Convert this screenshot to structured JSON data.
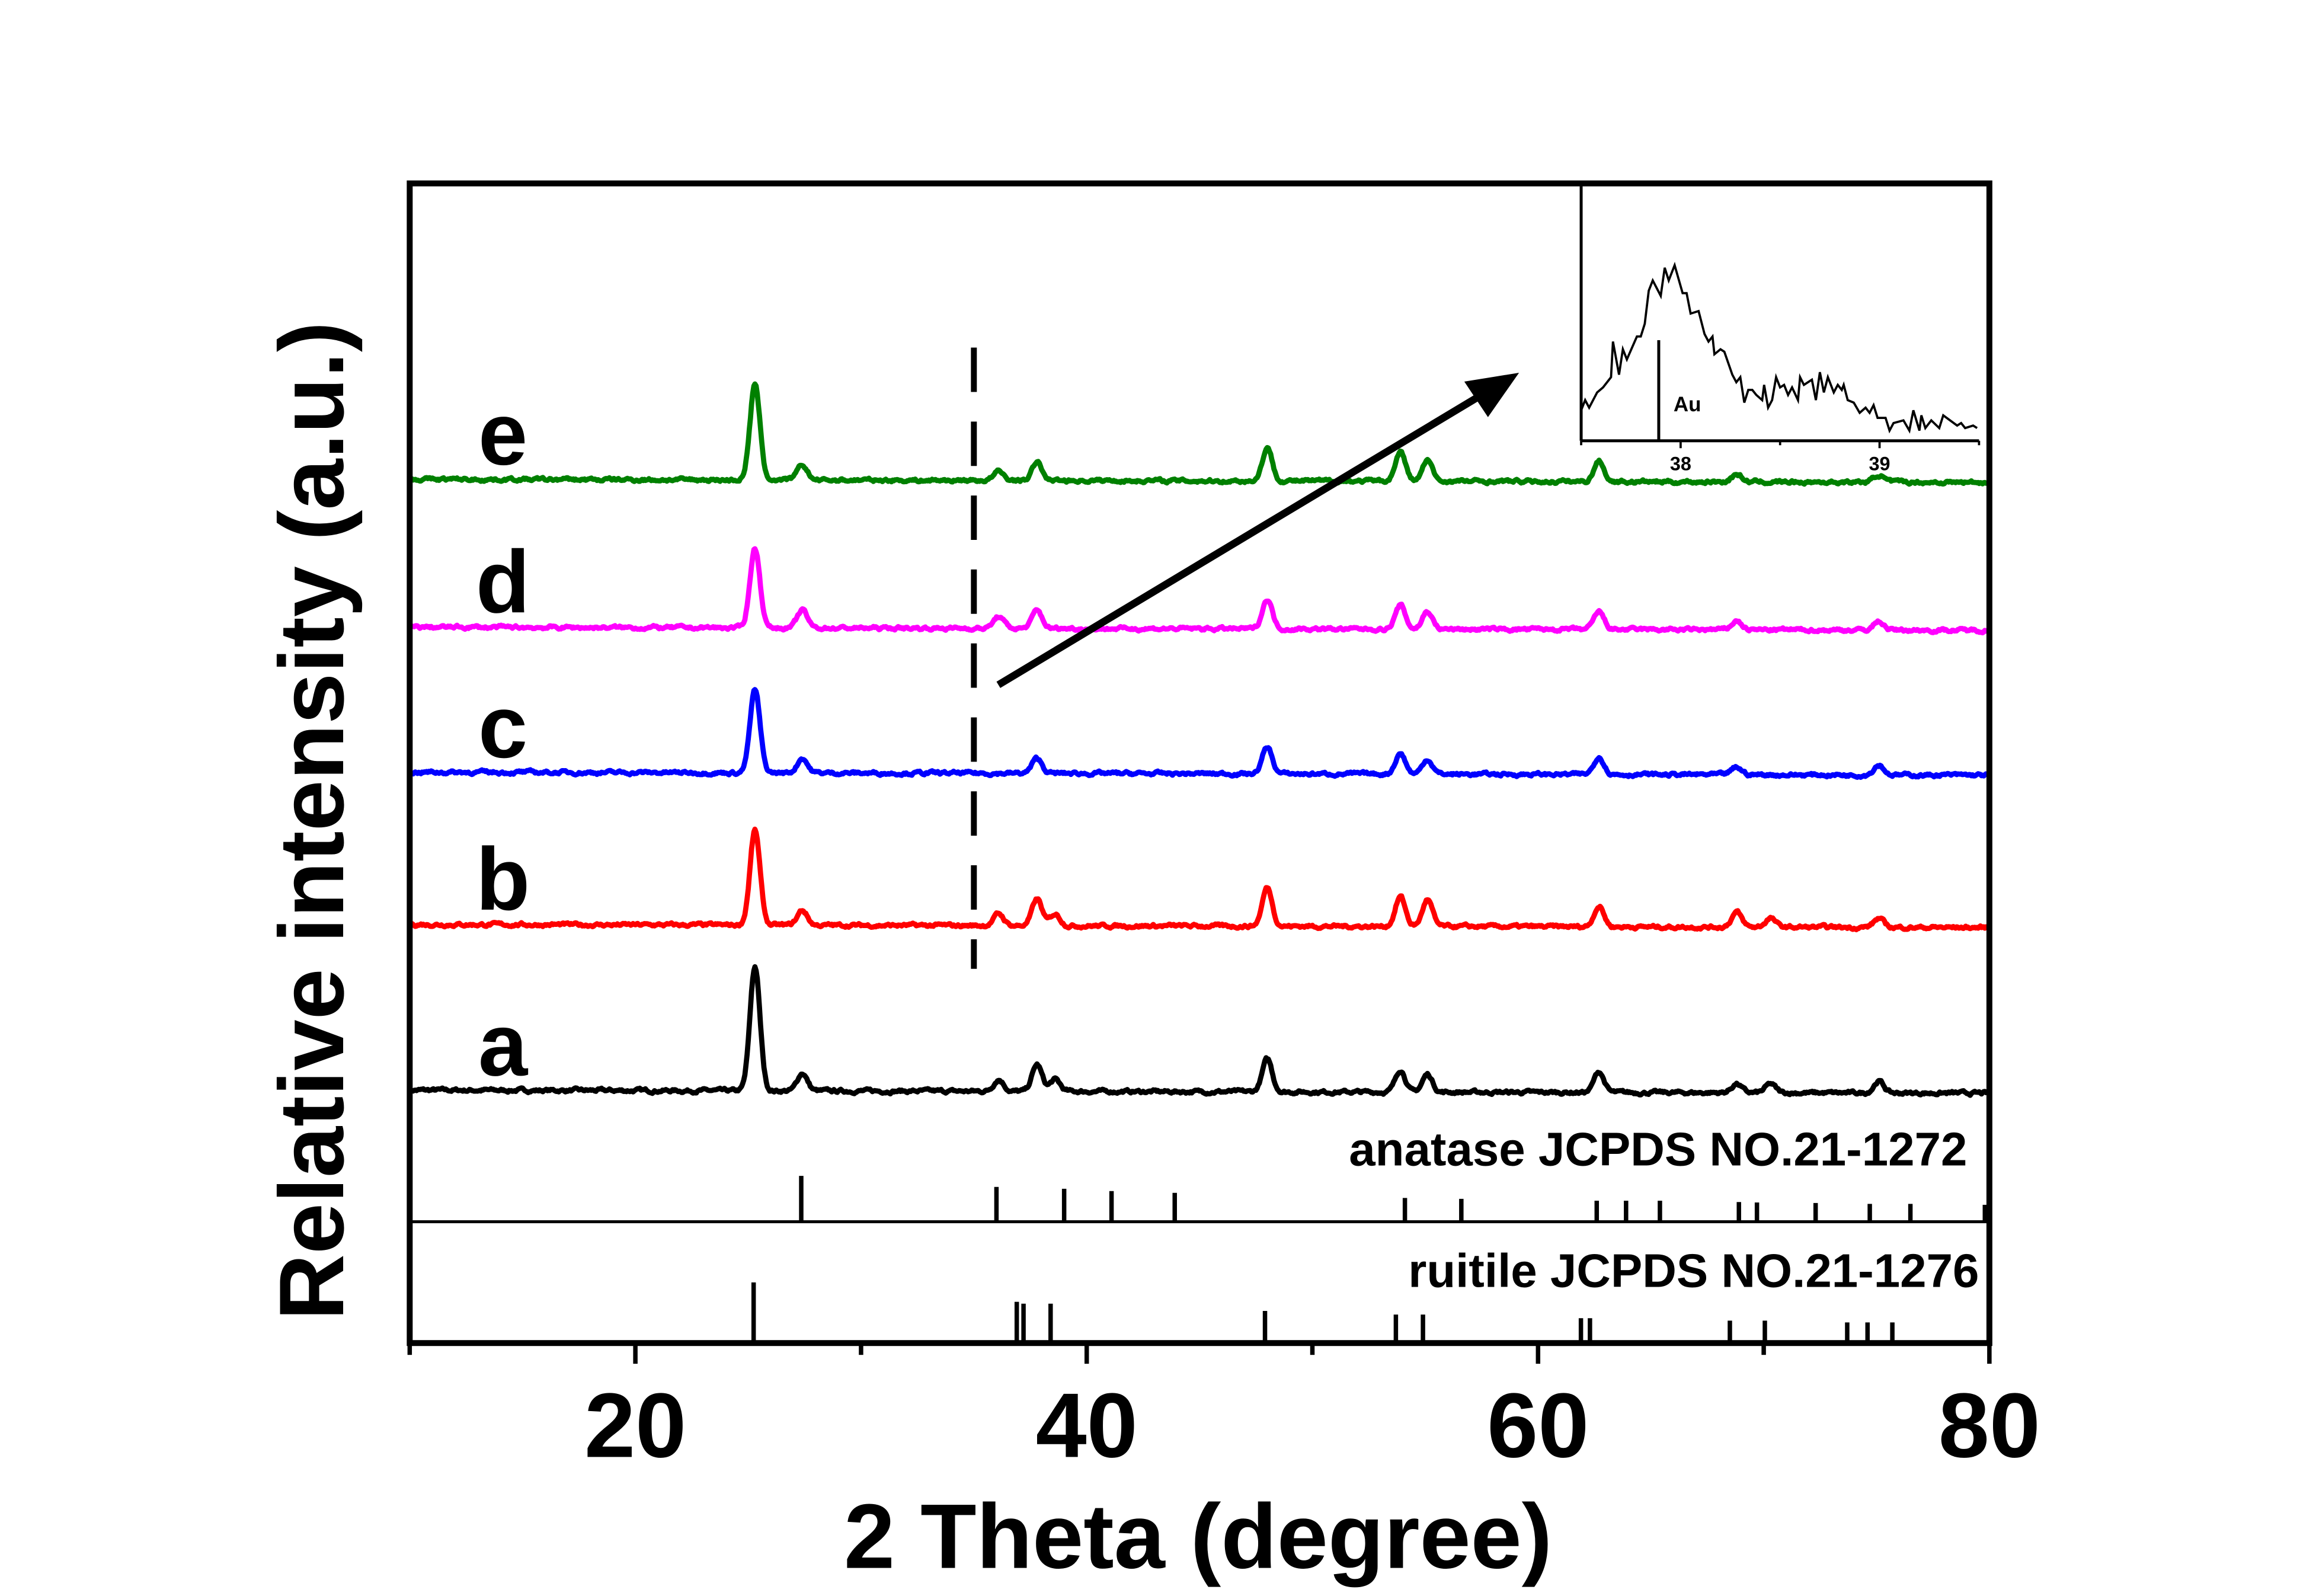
{
  "chart_data": {
    "type": "line",
    "xlabel": "2 Theta (degree)",
    "ylabel": "Relative intensity (a.u.)",
    "xlim": [
      10,
      80
    ],
    "x_ticks": [
      "20",
      "40",
      "60",
      "80"
    ],
    "y_ticks": [],
    "grid": false,
    "legend": "none",
    "series": [
      {
        "name": "a",
        "color": "#000000",
        "offset": 171,
        "peaks": [
          [
            25.3,
            84
          ],
          [
            27.4,
            12
          ],
          [
            36.1,
            8
          ],
          [
            37.8,
            18
          ],
          [
            38.6,
            8
          ],
          [
            48.0,
            22
          ],
          [
            53.9,
            15
          ],
          [
            55.1,
            12
          ],
          [
            62.7,
            14
          ],
          [
            68.8,
            6
          ],
          [
            70.3,
            6
          ],
          [
            75.1,
            8
          ]
        ]
      },
      {
        "name": "b",
        "color": "#ff0000",
        "offset": 283,
        "peaks": [
          [
            25.3,
            64
          ],
          [
            27.4,
            10
          ],
          [
            36.1,
            8
          ],
          [
            37.8,
            18
          ],
          [
            38.6,
            8
          ],
          [
            48.0,
            26
          ],
          [
            53.9,
            20
          ],
          [
            55.1,
            18
          ],
          [
            62.7,
            14
          ],
          [
            68.8,
            10
          ],
          [
            70.3,
            6
          ],
          [
            75.1,
            6
          ]
        ]
      },
      {
        "name": "c",
        "color": "#0000ff",
        "offset": 386,
        "peaks": [
          [
            25.3,
            56
          ],
          [
            27.4,
            10
          ],
          [
            37.8,
            10
          ],
          [
            48.0,
            18
          ],
          [
            53.9,
            14
          ],
          [
            55.1,
            10
          ],
          [
            62.7,
            12
          ],
          [
            68.8,
            5
          ],
          [
            75.1,
            7
          ]
        ]
      },
      {
        "name": "d",
        "color": "#ff00ff",
        "offset": 484,
        "peaks": [
          [
            25.3,
            54
          ],
          [
            27.4,
            12
          ],
          [
            36.1,
            8
          ],
          [
            37.8,
            12
          ],
          [
            48.0,
            20
          ],
          [
            53.9,
            16
          ],
          [
            55.1,
            12
          ],
          [
            62.7,
            12
          ],
          [
            68.8,
            6
          ],
          [
            75.1,
            6
          ]
        ]
      },
      {
        "name": "e",
        "color": "#008000",
        "offset": 584,
        "peaks": [
          [
            25.3,
            64
          ],
          [
            27.4,
            10
          ],
          [
            36.1,
            6
          ],
          [
            37.8,
            12
          ],
          [
            48.0,
            22
          ],
          [
            53.9,
            20
          ],
          [
            55.1,
            14
          ],
          [
            62.7,
            14
          ],
          [
            68.8,
            5
          ],
          [
            75.1,
            5
          ]
        ]
      }
    ],
    "reference_patterns": [
      {
        "label": "anatase JCPDS NO.21-1272",
        "lines": [
          [
            27.35,
            100
          ],
          [
            36.0,
            76
          ],
          [
            39.0,
            72
          ],
          [
            41.1,
            67
          ],
          [
            43.9,
            63
          ],
          [
            54.1,
            52
          ],
          [
            56.6,
            50
          ],
          [
            62.6,
            46
          ],
          [
            63.9,
            46
          ],
          [
            65.4,
            46
          ],
          [
            68.9,
            43
          ],
          [
            69.7,
            42
          ],
          [
            72.3,
            41
          ],
          [
            74.7,
            39
          ],
          [
            76.5,
            39
          ],
          [
            79.8,
            37
          ]
        ]
      },
      {
        "label": "ruitile JCPDS NO.21-1276",
        "lines": [
          [
            25.24,
            100
          ],
          [
            36.9,
            68
          ],
          [
            37.2,
            65
          ],
          [
            38.4,
            65
          ],
          [
            47.9,
            53
          ],
          [
            53.7,
            47
          ],
          [
            54.9,
            47
          ],
          [
            61.9,
            41
          ],
          [
            62.3,
            41
          ],
          [
            68.5,
            37
          ],
          [
            70.05,
            37
          ],
          [
            73.7,
            34
          ],
          [
            74.6,
            34
          ],
          [
            75.7,
            34
          ]
        ]
      }
    ],
    "annotations": {
      "dashed_line_x": 35
    },
    "inset": {
      "xlim": [
        37.5,
        39.5
      ],
      "x_ticks": [
        "38",
        "39"
      ],
      "reference_label": "Au",
      "reference_x": 37.89,
      "color": "#000000",
      "points": [
        [
          37.5,
          0.12
        ],
        [
          37.52,
          0.16
        ],
        [
          37.54,
          0.13
        ],
        [
          37.58,
          0.19
        ],
        [
          37.61,
          0.21
        ],
        [
          37.65,
          0.25
        ],
        [
          37.66,
          0.39
        ],
        [
          37.69,
          0.26
        ],
        [
          37.71,
          0.36
        ],
        [
          37.73,
          0.32
        ],
        [
          37.78,
          0.41
        ],
        [
          37.8,
          0.41
        ],
        [
          37.82,
          0.46
        ],
        [
          37.84,
          0.59
        ],
        [
          37.86,
          0.63
        ],
        [
          37.9,
          0.57
        ],
        [
          37.92,
          0.68
        ],
        [
          37.94,
          0.63
        ],
        [
          37.97,
          0.69
        ],
        [
          38.01,
          0.58
        ],
        [
          38.03,
          0.58
        ],
        [
          38.05,
          0.5
        ],
        [
          38.09,
          0.51
        ],
        [
          38.12,
          0.42
        ],
        [
          38.14,
          0.39
        ],
        [
          38.16,
          0.41
        ],
        [
          38.17,
          0.34
        ],
        [
          38.2,
          0.36
        ],
        [
          38.22,
          0.35
        ],
        [
          38.26,
          0.26
        ],
        [
          38.28,
          0.23
        ],
        [
          38.3,
          0.25
        ],
        [
          38.32,
          0.15
        ],
        [
          38.34,
          0.2
        ],
        [
          38.36,
          0.2
        ],
        [
          38.38,
          0.18
        ],
        [
          38.41,
          0.16
        ],
        [
          38.42,
          0.22
        ],
        [
          38.44,
          0.13
        ],
        [
          38.46,
          0.16
        ],
        [
          38.48,
          0.25
        ],
        [
          38.5,
          0.21
        ],
        [
          38.52,
          0.22
        ],
        [
          38.54,
          0.18
        ],
        [
          38.56,
          0.21
        ],
        [
          38.59,
          0.16
        ],
        [
          38.6,
          0.25
        ],
        [
          38.62,
          0.22
        ],
        [
          38.66,
          0.24
        ],
        [
          38.68,
          0.16
        ],
        [
          38.7,
          0.27
        ],
        [
          38.72,
          0.19
        ],
        [
          38.74,
          0.25
        ],
        [
          38.77,
          0.19
        ],
        [
          38.79,
          0.22
        ],
        [
          38.81,
          0.2
        ],
        [
          38.82,
          0.22
        ],
        [
          38.84,
          0.16
        ],
        [
          38.87,
          0.15
        ],
        [
          38.9,
          0.11
        ],
        [
          38.93,
          0.13
        ],
        [
          38.95,
          0.11
        ],
        [
          38.97,
          0.14
        ],
        [
          38.99,
          0.09
        ],
        [
          39.03,
          0.09
        ],
        [
          39.05,
          0.04
        ],
        [
          39.07,
          0.07
        ],
        [
          39.12,
          0.08
        ],
        [
          39.15,
          0.04
        ],
        [
          39.17,
          0.12
        ],
        [
          39.2,
          0.04
        ],
        [
          39.21,
          0.1
        ],
        [
          39.23,
          0.05
        ],
        [
          39.26,
          0.08
        ],
        [
          39.3,
          0.05
        ],
        [
          39.32,
          0.1
        ],
        [
          39.39,
          0.06
        ],
        [
          39.41,
          0.07
        ],
        [
          39.43,
          0.05
        ],
        [
          39.47,
          0.06
        ],
        [
          39.49,
          0.05
        ]
      ]
    }
  }
}
